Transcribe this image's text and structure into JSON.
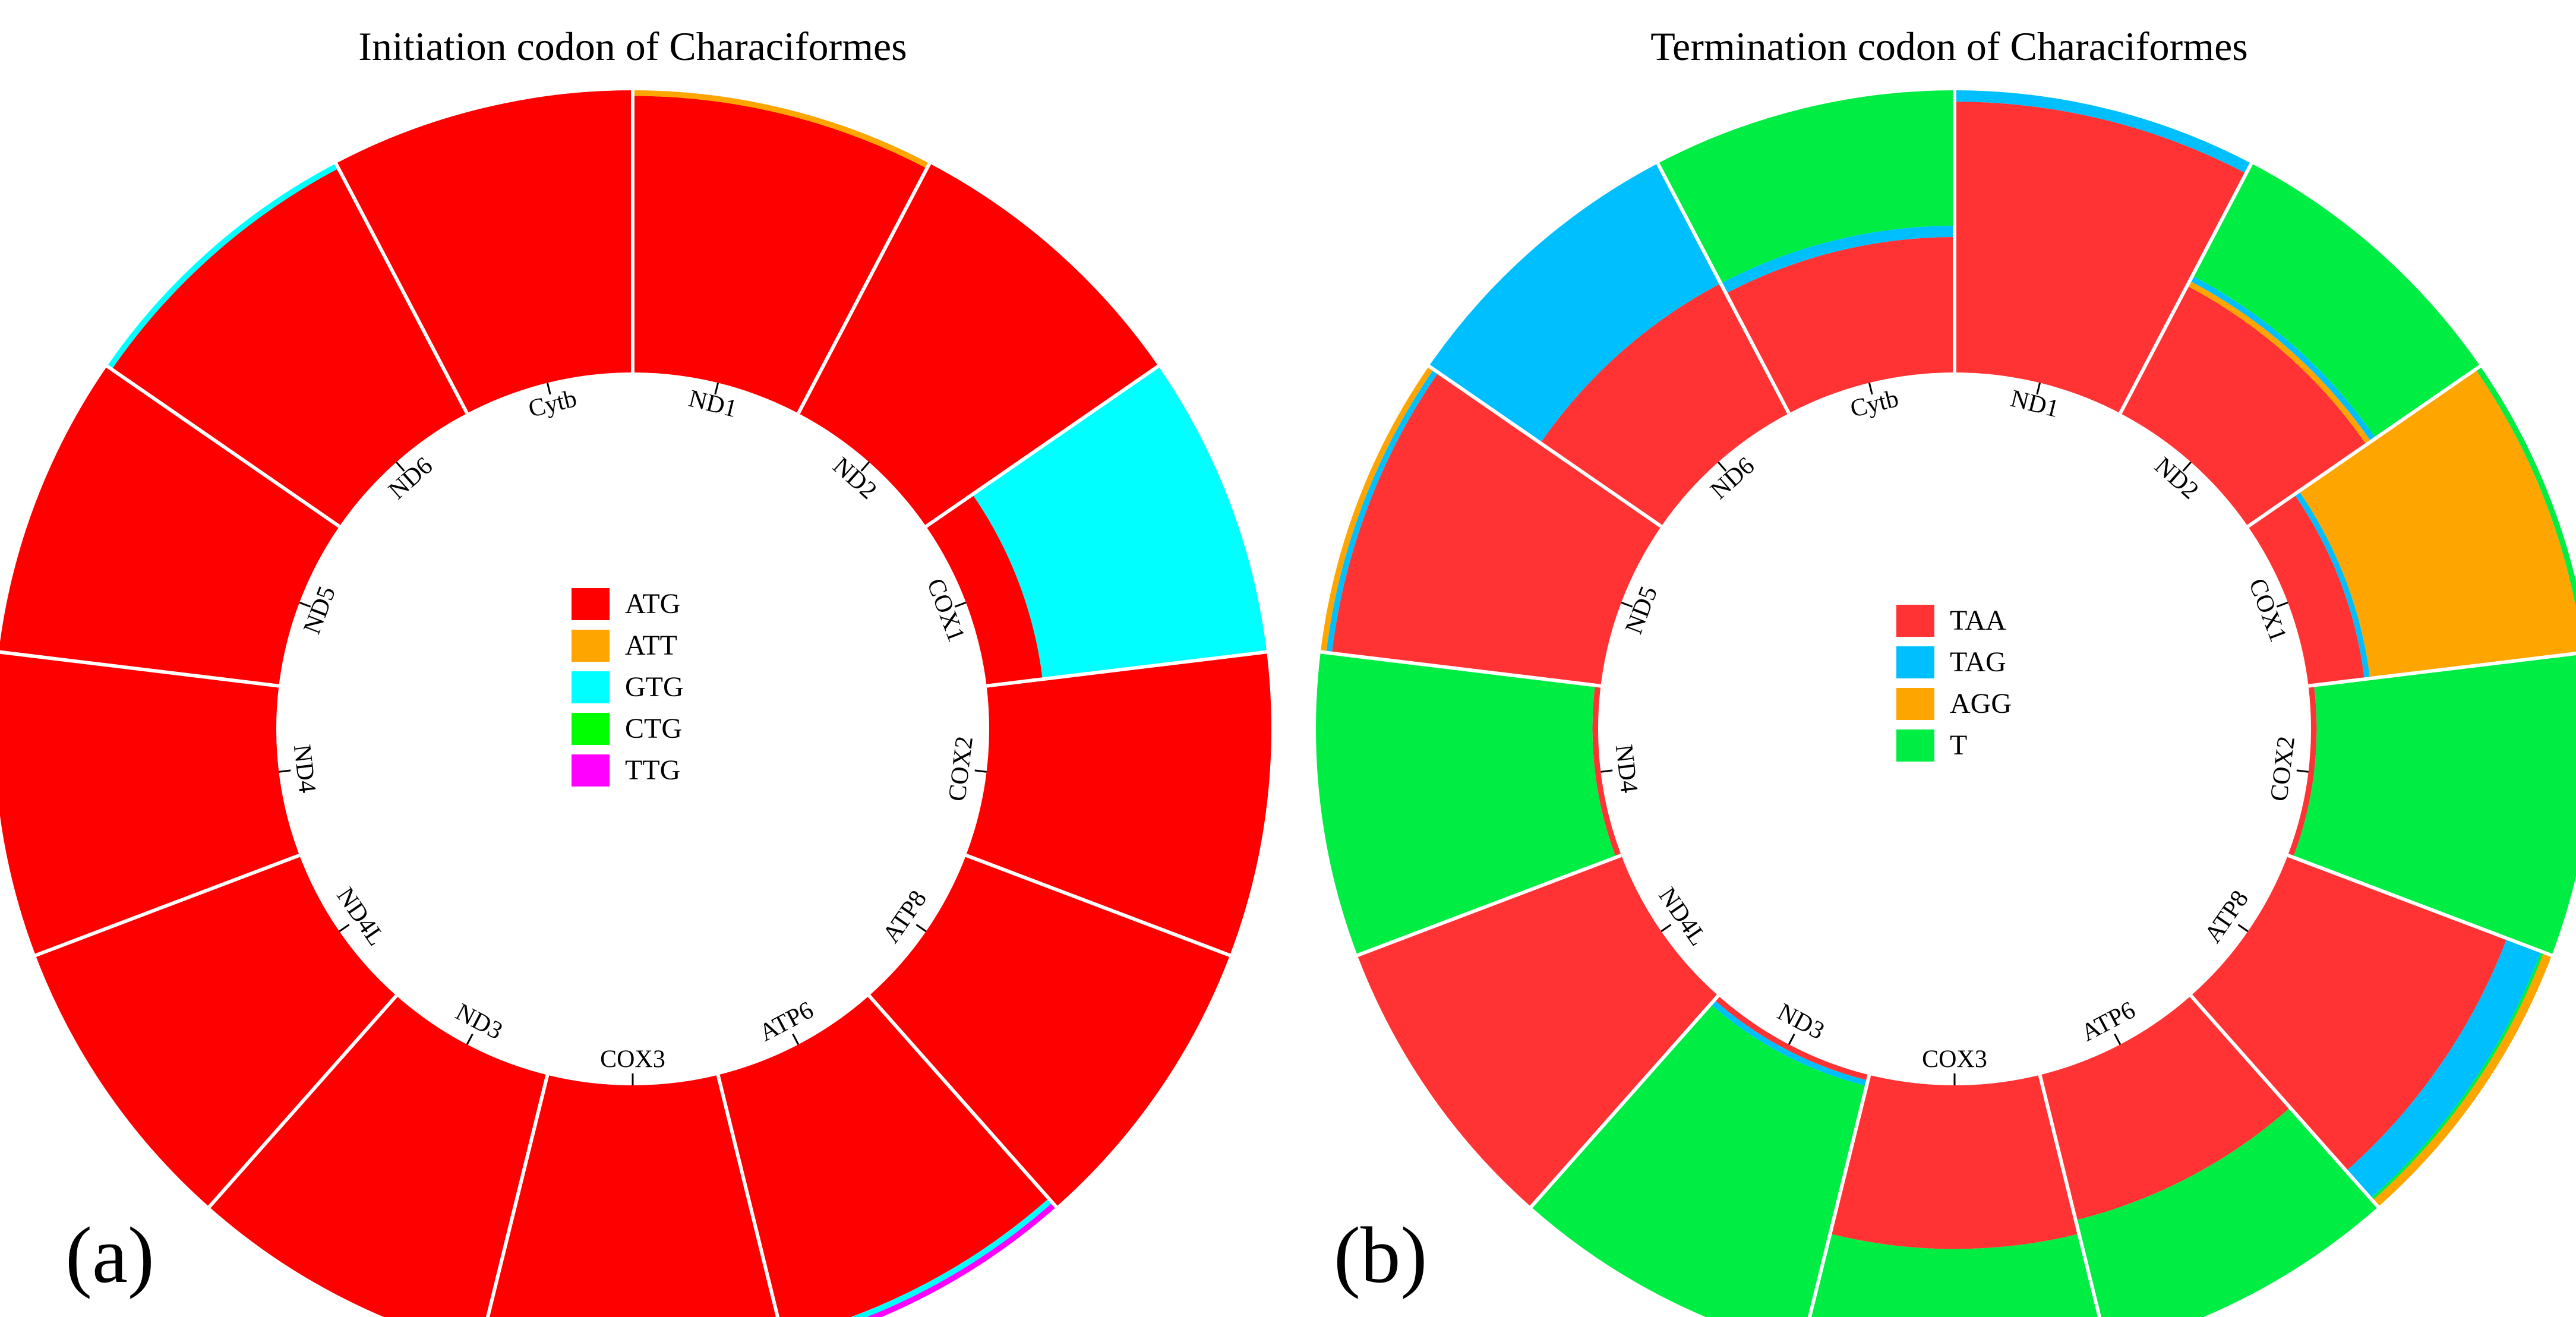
{
  "chart_data": [
    {
      "type": "donut",
      "panel_letter": "(a)",
      "title": "Initiation codon of Characiformes",
      "genes": [
        "ND1",
        "ND2",
        "COX1",
        "COX2",
        "ATP8",
        "ATP6",
        "COX3",
        "ND3",
        "ND4L",
        "ND4",
        "ND5",
        "ND6",
        "Cytb"
      ],
      "legend": [
        {
          "name": "ATG",
          "color": "#FF0000"
        },
        {
          "name": "ATT",
          "color": "#FFA500"
        },
        {
          "name": "GTG",
          "color": "#00FFFF"
        },
        {
          "name": "CTG",
          "color": "#00FF00"
        },
        {
          "name": "TTG",
          "color": "#FF00FF"
        }
      ],
      "proportions": {
        "ND1": {
          "ATG": 0.98,
          "ATT": 0.02
        },
        "ND2": {
          "ATG": 1.0
        },
        "COX1": {
          "ATG": 0.2,
          "GTG": 0.8
        },
        "COX2": {
          "ATG": 1.0
        },
        "ATP8": {
          "ATG": 1.0
        },
        "ATP6": {
          "ATG": 0.96,
          "GTG": 0.02,
          "TTG": 0.02
        },
        "COX3": {
          "ATG": 0.98,
          "ATT": 0.02
        },
        "ND3": {
          "ATG": 1.0
        },
        "ND4L": {
          "ATG": 1.0
        },
        "ND4": {
          "ATG": 1.0
        },
        "ND5": {
          "ATG": 1.0
        },
        "ND6": {
          "ATG": 0.98,
          "GTG": 0.02
        },
        "Cytb": {
          "ATG": 1.0
        }
      }
    },
    {
      "type": "donut",
      "panel_letter": "(b)",
      "title": "Termination codon of Characiformes",
      "genes": [
        "ND1",
        "ND2",
        "COX1",
        "COX2",
        "ATP8",
        "ATP6",
        "COX3",
        "ND3",
        "ND4L",
        "ND4",
        "ND5",
        "ND6",
        "Cytb"
      ],
      "legend": [
        {
          "name": "TAA",
          "color": "#FF3333"
        },
        {
          "name": "TAG",
          "color": "#00BFFF"
        },
        {
          "name": "AGG",
          "color": "#FFA500"
        },
        {
          "name": "T",
          "color": "#00EE44"
        }
      ],
      "proportions": {
        "ND1": {
          "TAA": 0.96,
          "TAG": 0.04
        },
        "ND2": {
          "TAA": 0.51,
          "AGG": 0.02,
          "TAG": 0.02,
          "T": 0.45
        },
        "COX1": {
          "TAA": 0.2,
          "TAG": 0.02,
          "AGG": 0.76,
          "T": 0.02
        },
        "COX2": {
          "TAA": 0.02,
          "T": 0.98
        },
        "ATP8": {
          "TAA": 0.83,
          "TAG": 0.13,
          "T": 0.01,
          "AGG": 0.03
        },
        "ATP6": {
          "TAA": 0.53,
          "T": 0.47
        },
        "COX3": {
          "TAA": 0.58,
          "T": 0.42
        },
        "ND3": {
          "TAA": 0.02,
          "TAG": 0.02,
          "T": 0.96
        },
        "ND4L": {
          "TAA": 1.0
        },
        "ND4": {
          "TAA": 0.02,
          "T": 0.98
        },
        "ND5": {
          "TAA": 0.96,
          "TAG": 0.02,
          "AGG": 0.02
        },
        "ND6": {
          "TAA": 0.52,
          "TAG": 0.48
        },
        "Cytb": {
          "TAA": 0.48,
          "TAG": 0.04,
          "T": 0.48
        }
      }
    }
  ]
}
